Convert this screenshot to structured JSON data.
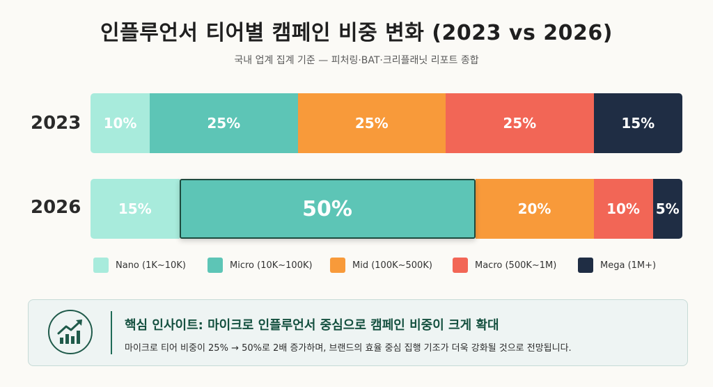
{
  "title": "인플루언서 티어별 캠페인 비중 변화 (2023 vs 2026)",
  "subtitle": "국내 업계 집계 기준 — 피처링·BAT·크리플래닛 리포트 종합",
  "chart_data": {
    "type": "bar",
    "orientation": "horizontal-stacked-100",
    "categories": [
      "2023",
      "2026"
    ],
    "series": [
      {
        "name": "Nano (1K~10K)",
        "color": "#a8ebdc",
        "values": [
          10,
          15
        ],
        "labels": [
          "10%",
          "15%"
        ]
      },
      {
        "name": "Micro (10K~100K)",
        "color": "#5dc5b6",
        "values": [
          25,
          50
        ],
        "labels": [
          "25%",
          "50%"
        ]
      },
      {
        "name": "Mid (100K~500K)",
        "color": "#f89a3a",
        "values": [
          25,
          20
        ],
        "labels": [
          "25%",
          "20%"
        ]
      },
      {
        "name": "Macro (500K~1M)",
        "color": "#f26656",
        "values": [
          25,
          10
        ],
        "labels": [
          "25%",
          "10%"
        ]
      },
      {
        "name": "Mega (1M+)",
        "color": "#1f2d44",
        "values": [
          15,
          5
        ],
        "labels": [
          "15%",
          "5%"
        ]
      }
    ],
    "highlight": {
      "category": "2026",
      "series": "Micro (10K~100K)"
    },
    "legend_position": "bottom",
    "xlim": [
      0,
      100
    ]
  },
  "insight": {
    "icon": "growth-chart-icon",
    "title": "핵심 인사이트: 마이크로 인플루언서 중심으로 캠페인 비중이 크게 확대",
    "body": "마이크로 티어 비중이 25% → 50%로 2배 증가하며, 브랜드의 효율 중심 집행 기조가 더욱 강화될 것으로 전망됩니다."
  }
}
